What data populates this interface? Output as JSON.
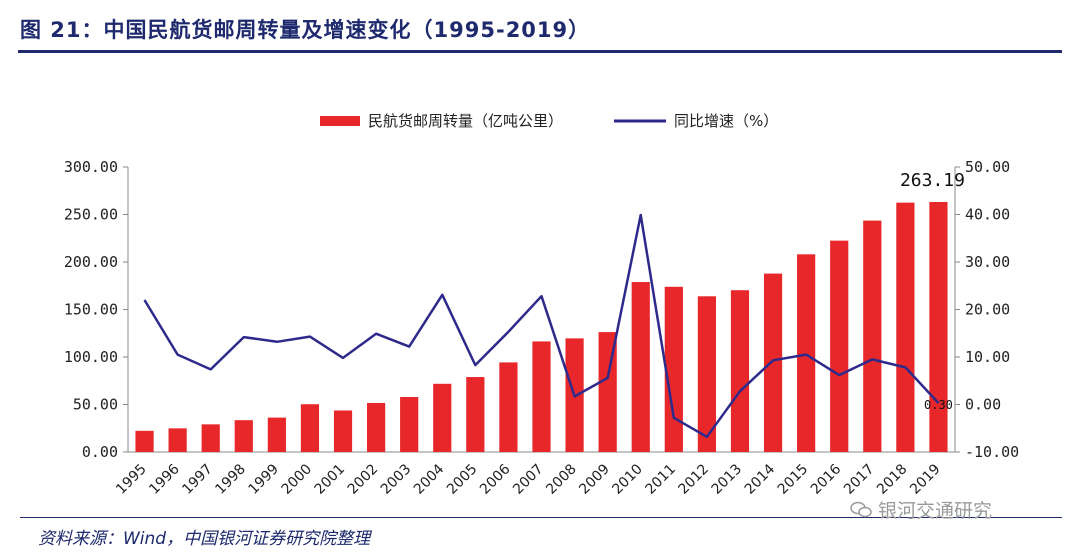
{
  "figure_title": "图 21：中国民航货邮周转量及增速变化（1995-2019）",
  "source": "资料来源：Wind，中国银河证券研究院整理",
  "watermark": "银河交通研究",
  "watermark_icon": "wechat-icon",
  "colors": {
    "bar": "#e8272a",
    "line": "#2e2a8c",
    "title": "#1f2a6e"
  },
  "chart_data": {
    "type": "bar",
    "categories": [
      "1995",
      "1996",
      "1997",
      "1998",
      "1999",
      "2000",
      "2001",
      "2002",
      "2003",
      "2004",
      "2005",
      "2006",
      "2007",
      "2008",
      "2009",
      "2010",
      "2011",
      "2012",
      "2013",
      "2014",
      "2015",
      "2016",
      "2017",
      "2018",
      "2019"
    ],
    "series": [
      {
        "name": "民航货邮周转量（亿吨公里）",
        "type": "bar",
        "axis": "left",
        "values": [
          22.3,
          24.9,
          29.1,
          33.5,
          36.2,
          50.3,
          43.7,
          51.6,
          57.9,
          71.8,
          78.9,
          94.3,
          116.4,
          119.6,
          126.2,
          178.9,
          173.9,
          163.9,
          170.3,
          187.8,
          208.1,
          222.5,
          243.6,
          262.5,
          263.19
        ]
      },
      {
        "name": "同比增速（%）",
        "type": "line",
        "axis": "right",
        "values": [
          22.0,
          10.5,
          7.4,
          14.2,
          13.2,
          14.3,
          9.8,
          14.9,
          12.2,
          23.1,
          8.3,
          15.3,
          22.8,
          1.7,
          5.6,
          39.9,
          -2.8,
          -6.8,
          2.8,
          9.3,
          10.5,
          6.2,
          9.5,
          7.8,
          0.3
        ]
      }
    ],
    "y_left": {
      "min": 0,
      "max": 300,
      "step": 50,
      "ticks": [
        "0.00",
        "50.00",
        "100.00",
        "150.00",
        "200.00",
        "250.00",
        "300.00"
      ]
    },
    "y_right": {
      "min": -10,
      "max": 50,
      "step": 10,
      "ticks": [
        "-10.00",
        "0.00",
        "10.00",
        "20.00",
        "30.00",
        "40.00",
        "50.00"
      ]
    },
    "annotations": {
      "last_bar": "263.19",
      "last_line": "0.30"
    },
    "legend_position": "top-center",
    "grid": false
  }
}
